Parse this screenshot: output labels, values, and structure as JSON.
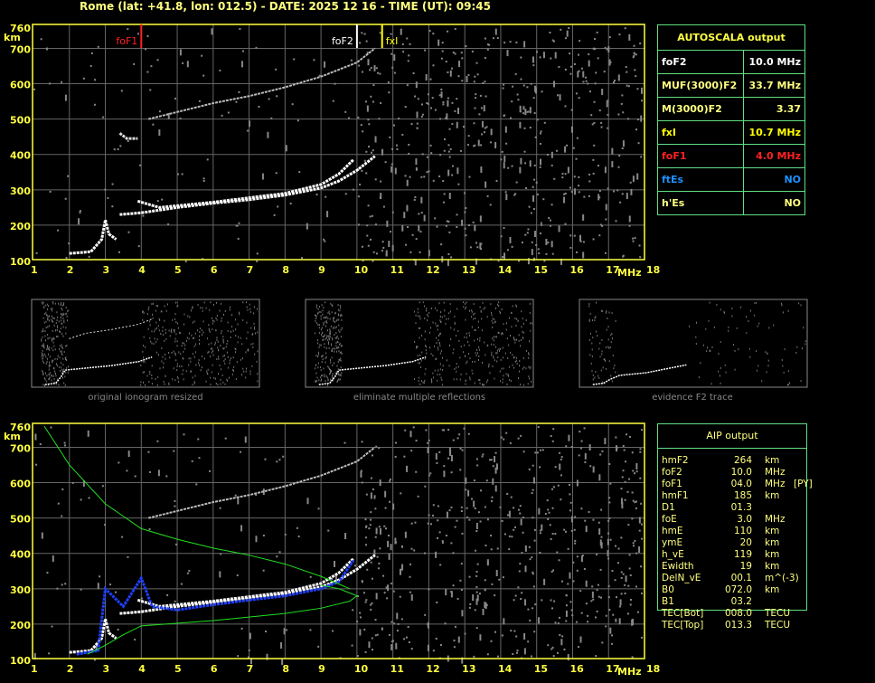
{
  "header": {
    "title": "Rome (lat: +41.8, lon: 012.5) - DATE: 2025 12 16 - TIME (UT): 09:45"
  },
  "autoscala": {
    "title": "AUTOSCALA output",
    "rows": [
      {
        "label": "foF2",
        "value": "10.0 MHz",
        "color": "#ffffff"
      },
      {
        "label": "MUF(3000)F2",
        "value": "33.7 MHz",
        "color": "#ffff80"
      },
      {
        "label": "M(3000)F2",
        "value": "3.37",
        "color": "#ffff80"
      },
      {
        "label": "fxI",
        "value": "10.7 MHz",
        "color": "#ffff00"
      },
      {
        "label": "foF1",
        "value": "4.0 MHz",
        "color": "#ff2020"
      },
      {
        "label": "ftEs",
        "value": "NO",
        "color": "#2090ff"
      },
      {
        "label": "h'Es",
        "value": "NO",
        "color": "#ffff80"
      }
    ]
  },
  "aip": {
    "title": "AIP output",
    "rows": [
      [
        "hmF2",
        "264",
        "km",
        ""
      ],
      [
        "foF2",
        "10.0",
        "MHz",
        ""
      ],
      [
        "foF1",
        "04.0",
        "MHz",
        "[PY]"
      ],
      [
        "hmF1",
        "185",
        "km",
        ""
      ],
      [
        "D1",
        "01.3",
        "",
        ""
      ],
      [
        "foE",
        "3.0",
        "MHz",
        ""
      ],
      [
        "hmE",
        "110",
        "km",
        ""
      ],
      [
        "ymE",
        "20",
        "km",
        ""
      ],
      [
        "h_vE",
        "119",
        "km",
        ""
      ],
      [
        "Ewidth",
        "19",
        "km",
        ""
      ],
      [
        "DelN_vE",
        "00.1",
        "m^(-3)",
        ""
      ],
      [
        "B0",
        "072.0",
        "km",
        ""
      ],
      [
        "B1",
        "03.2",
        "",
        ""
      ],
      [
        "TEC[Bot]",
        "008.0",
        "TECU",
        ""
      ],
      [
        "TEC[Top]",
        "013.3",
        "TECU",
        ""
      ]
    ]
  },
  "thumbnails": [
    {
      "caption": "original ionogram resized"
    },
    {
      "caption": "eliminate multiple reflections"
    },
    {
      "caption": "evidence F2 trace"
    }
  ],
  "chart_data": [
    {
      "type": "scatter",
      "ylabel": "km",
      "xlabel": "MHz",
      "xlim": [
        1,
        18
      ],
      "ylim": [
        100,
        760
      ],
      "xticks": [
        "1",
        "2",
        "3",
        "4",
        "5",
        "6",
        "7",
        "8",
        "9",
        "10",
        "11",
        "12",
        "13",
        "14",
        "15",
        "16",
        "17",
        "18"
      ],
      "yticks": [
        "100",
        "200",
        "300",
        "400",
        "500",
        "600",
        "700",
        "760"
      ],
      "grid": true,
      "markers": [
        {
          "label": "foF1",
          "x": 4.0,
          "color": "#ff2020"
        },
        {
          "label": "foF2",
          "x": 10.0,
          "color": "#ffffff"
        },
        {
          "label": "fxI",
          "x": 10.7,
          "color": "#ffff00"
        }
      ],
      "traces": [
        {
          "color": "#ffffff",
          "points": [
            [
              2,
              120
            ],
            [
              2.6,
              125
            ],
            [
              2.9,
              160
            ],
            [
              3.0,
              215
            ],
            [
              3.1,
              175
            ],
            [
              3.3,
              160
            ]
          ]
        },
        {
          "color": "#ffffff",
          "points": [
            [
              3.4,
              230
            ],
            [
              4,
              235
            ],
            [
              5,
              250
            ],
            [
              6,
              262
            ],
            [
              7,
              272
            ],
            [
              8,
              285
            ],
            [
              9,
              305
            ],
            [
              9.5,
              325
            ],
            [
              10,
              355
            ],
            [
              10.5,
              395
            ]
          ]
        },
        {
          "color": "#ffffff",
          "points": [
            [
              3.9,
              268
            ],
            [
              4.5,
              250
            ],
            [
              6,
              265
            ],
            [
              8,
              290
            ],
            [
              9,
              315
            ],
            [
              9.5,
              345
            ],
            [
              9.9,
              385
            ]
          ]
        },
        {
          "color": "#bbbbbb",
          "points": [
            [
              4.2,
              500
            ],
            [
              5,
              520
            ],
            [
              6,
              545
            ],
            [
              7,
              565
            ],
            [
              8,
              590
            ],
            [
              9,
              620
            ],
            [
              10,
              660
            ],
            [
              10.5,
              700
            ]
          ]
        },
        {
          "color": "#dddddd",
          "points": [
            [
              3.4,
              460
            ],
            [
              3.6,
              445
            ],
            [
              3.9,
              445
            ]
          ]
        }
      ]
    },
    {
      "type": "scatter",
      "ylabel": "km",
      "xlabel": "MHz",
      "xlim": [
        1,
        18
      ],
      "ylim": [
        100,
        760
      ],
      "xticks": [
        "1",
        "2",
        "3",
        "4",
        "5",
        "6",
        "7",
        "8",
        "9",
        "10",
        "11",
        "12",
        "13",
        "14",
        "15",
        "16",
        "17",
        "18"
      ],
      "yticks": [
        "100",
        "200",
        "300",
        "400",
        "500",
        "600",
        "700",
        "760"
      ],
      "grid": true,
      "traces": [
        {
          "color": "#ffffff",
          "points": [
            [
              2,
              120
            ],
            [
              2.6,
              125
            ],
            [
              2.9,
              160
            ],
            [
              3.0,
              215
            ],
            [
              3.1,
              175
            ],
            [
              3.3,
              160
            ]
          ]
        },
        {
          "color": "#ffffff",
          "points": [
            [
              3.4,
              230
            ],
            [
              4,
              235
            ],
            [
              5,
              250
            ],
            [
              6,
              262
            ],
            [
              7,
              272
            ],
            [
              8,
              285
            ],
            [
              9,
              305
            ],
            [
              9.5,
              325
            ],
            [
              10,
              355
            ],
            [
              10.5,
              395
            ]
          ]
        },
        {
          "color": "#ffffff",
          "points": [
            [
              3.9,
              268
            ],
            [
              4.5,
              250
            ],
            [
              6,
              265
            ],
            [
              8,
              290
            ],
            [
              9,
              315
            ],
            [
              9.5,
              345
            ],
            [
              9.9,
              385
            ]
          ]
        },
        {
          "color": "#bbbbbb",
          "points": [
            [
              4.2,
              500
            ],
            [
              5,
              520
            ],
            [
              6,
              545
            ],
            [
              7,
              565
            ],
            [
              8,
              590
            ],
            [
              9,
              620
            ],
            [
              10,
              660
            ],
            [
              10.5,
              700
            ]
          ]
        },
        {
          "color": "#2040ff",
          "points": [
            [
              2.2,
              115
            ],
            [
              2.8,
              125
            ],
            [
              3,
              300
            ],
            [
              3.5,
              250
            ],
            [
              4,
              330
            ],
            [
              4.3,
              250
            ],
            [
              5,
              240
            ],
            [
              6,
              255
            ],
            [
              7,
              268
            ],
            [
              8,
              280
            ],
            [
              9,
              300
            ],
            [
              9.5,
              320
            ],
            [
              9.9,
              380
            ]
          ]
        },
        {
          "color": "#20e020",
          "points": [
            [
              1.3,
              760
            ],
            [
              2,
              650
            ],
            [
              3,
              540
            ],
            [
              4,
              470
            ],
            [
              5,
              440
            ],
            [
              6,
              415
            ],
            [
              7,
              395
            ],
            [
              8,
              370
            ],
            [
              9,
              335
            ],
            [
              9.8,
              300
            ]
          ]
        },
        {
          "color": "#20e020",
          "points": [
            [
              2.5,
              115
            ],
            [
              3,
              140
            ],
            [
              3.5,
              170
            ],
            [
              4,
              195
            ],
            [
              6,
              210
            ],
            [
              8,
              230
            ],
            [
              9,
              245
            ],
            [
              9.8,
              265
            ],
            [
              10,
              280
            ],
            [
              9.5,
              300
            ],
            [
              9,
              310
            ]
          ]
        }
      ]
    }
  ]
}
